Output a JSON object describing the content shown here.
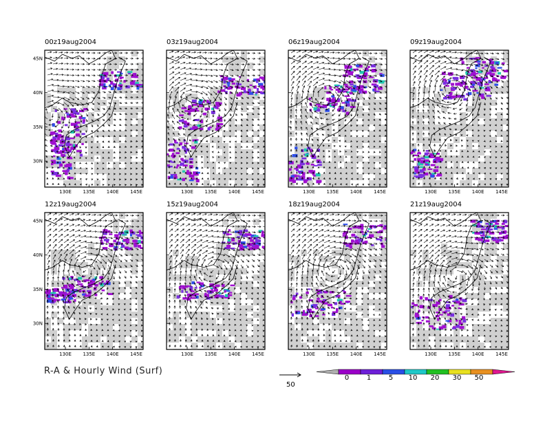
{
  "figure_title": "R-A & Hourly Wind (Surf)",
  "panels": [
    {
      "label": "00z19aug2004",
      "storm": [
        0.05,
        0.45
      ],
      "rain": [
        [
          0.05,
          0.42,
          0.35,
          0.35
        ],
        [
          0.55,
          0.15,
          0.45,
          0.12
        ],
        [
          0.05,
          0.6,
          0.2,
          0.35
        ]
      ]
    },
    {
      "label": "03z19aug2004",
      "storm": [
        0.22,
        0.38
      ],
      "rain": [
        [
          0.12,
          0.35,
          0.45,
          0.22
        ],
        [
          0.5,
          0.18,
          0.5,
          0.14
        ],
        [
          0.0,
          0.65,
          0.3,
          0.3
        ]
      ]
    },
    {
      "label": "06z19aug2004",
      "storm": [
        0.35,
        0.33
      ],
      "rain": [
        [
          0.2,
          0.25,
          0.45,
          0.2
        ],
        [
          0.55,
          0.1,
          0.4,
          0.2
        ],
        [
          0.0,
          0.7,
          0.3,
          0.25
        ]
      ]
    },
    {
      "label": "09z19aug2004",
      "storm": [
        0.4,
        0.28
      ],
      "rain": [
        [
          0.3,
          0.15,
          0.5,
          0.2
        ],
        [
          0.5,
          0.05,
          0.45,
          0.2
        ],
        [
          0.0,
          0.72,
          0.3,
          0.2
        ]
      ]
    },
    {
      "label": "12z19aug2004",
      "storm": [
        0.4,
        0.4
      ],
      "rain": [
        [
          0.55,
          0.12,
          0.45,
          0.14
        ],
        [
          0.1,
          0.45,
          0.55,
          0.15
        ],
        [
          0.0,
          0.55,
          0.3,
          0.1
        ]
      ]
    },
    {
      "label": "15z19aug2004",
      "storm": [
        0.45,
        0.4
      ],
      "rain": [
        [
          0.55,
          0.12,
          0.45,
          0.14
        ],
        [
          0.1,
          0.5,
          0.55,
          0.12
        ]
      ]
    },
    {
      "label": "18z19aug2004",
      "storm": [
        0.45,
        0.4
      ],
      "rain": [
        [
          0.55,
          0.08,
          0.45,
          0.16
        ],
        [
          0.0,
          0.55,
          0.6,
          0.2
        ]
      ]
    },
    {
      "label": "21z19aug2004",
      "storm": [
        0.45,
        0.45
      ],
      "rain": [
        [
          0.6,
          0.05,
          0.4,
          0.16
        ],
        [
          0.0,
          0.6,
          0.55,
          0.25
        ]
      ]
    }
  ],
  "axes": {
    "lat_ticks": [
      "45N",
      "40N",
      "35N",
      "30N"
    ],
    "lon_ticks": [
      "130E",
      "135E",
      "140E",
      "145E"
    ]
  },
  "wind_reference": {
    "value": "50"
  },
  "colorbar": {
    "labels": [
      "0",
      "1",
      "5",
      "10",
      "20",
      "30",
      "50"
    ],
    "colors": [
      "#b0b0b0",
      "#9a00c8",
      "#6e20d8",
      "#2a4fe6",
      "#1fc8c8",
      "#22c022",
      "#e8e020",
      "#e89020",
      "#e01890"
    ]
  }
}
